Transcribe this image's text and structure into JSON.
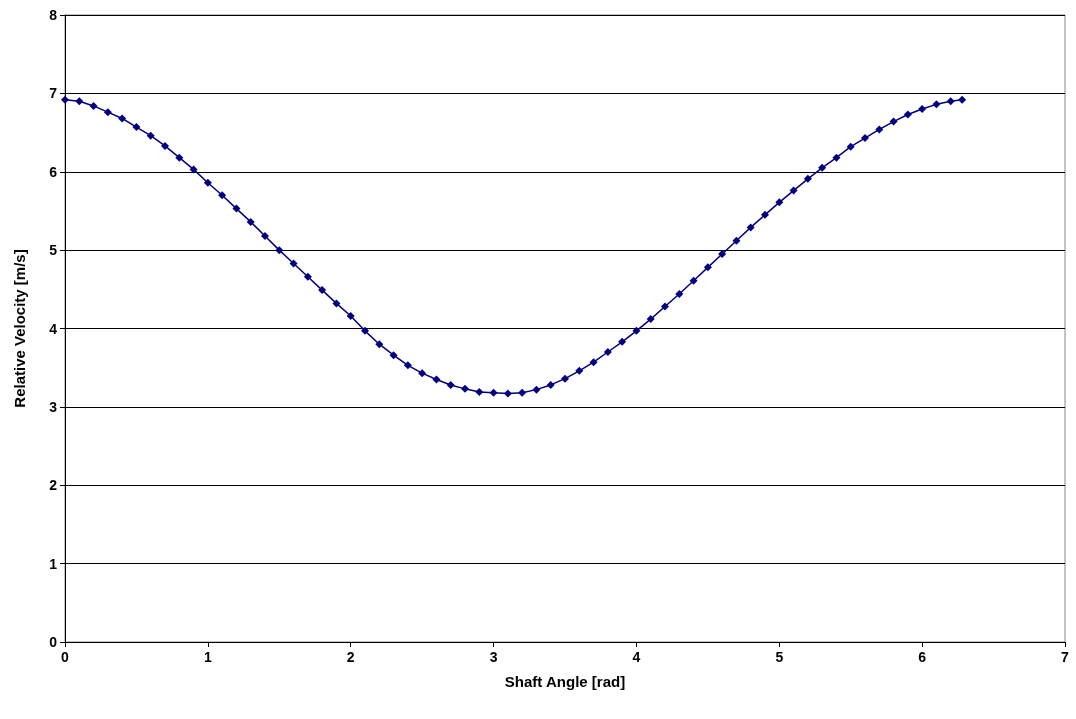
{
  "chart_data": {
    "type": "line",
    "xlabel": "Shaft Angle [rad]",
    "ylabel": "Relative Velocity [m/s]",
    "xlim": [
      0,
      7
    ],
    "xticks": [
      0,
      1,
      2,
      3,
      4,
      5,
      6,
      7
    ],
    "ylim": [
      0,
      8
    ],
    "yticks": [
      0,
      1,
      2,
      3,
      4,
      5,
      6,
      7,
      8
    ],
    "grid": "y",
    "marker": "diamond",
    "line_style": "solid",
    "series": [
      {
        "color": "#000080",
        "x": [
          0,
          0.1,
          0.2,
          0.3,
          0.4,
          0.5,
          0.6,
          0.7,
          0.8,
          0.9,
          1.0,
          1.1,
          1.2,
          1.3,
          1.4,
          1.5,
          1.6,
          1.7,
          1.8,
          1.9,
          2.0,
          2.1,
          2.2,
          2.3,
          2.4,
          2.5,
          2.6,
          2.7,
          2.8,
          2.9,
          3.0,
          3.1,
          3.2,
          3.3,
          3.4,
          3.5,
          3.6,
          3.7,
          3.8,
          3.9,
          4.0,
          4.1,
          4.2,
          4.3,
          4.4,
          4.5,
          4.6,
          4.7,
          4.8,
          4.9,
          5.0,
          5.1,
          5.2,
          5.3,
          5.4,
          5.5,
          5.6,
          5.7,
          5.8,
          5.9,
          6.0,
          6.1,
          6.2,
          6.28
        ],
        "values": [
          6.92,
          6.9,
          6.84,
          6.76,
          6.68,
          6.57,
          6.46,
          6.33,
          6.18,
          6.03,
          5.86,
          5.7,
          5.53,
          5.36,
          5.18,
          5.0,
          4.83,
          4.66,
          4.49,
          4.32,
          4.16,
          3.97,
          3.8,
          3.66,
          3.53,
          3.43,
          3.35,
          3.28,
          3.23,
          3.19,
          3.18,
          3.17,
          3.18,
          3.22,
          3.28,
          3.36,
          3.46,
          3.57,
          3.7,
          3.83,
          3.97,
          4.12,
          4.28,
          4.44,
          4.61,
          4.78,
          4.95,
          5.12,
          5.29,
          5.45,
          5.61,
          5.76,
          5.91,
          6.05,
          6.18,
          6.32,
          6.43,
          6.54,
          6.64,
          6.73,
          6.8,
          6.86,
          6.9,
          6.92
        ]
      }
    ]
  }
}
